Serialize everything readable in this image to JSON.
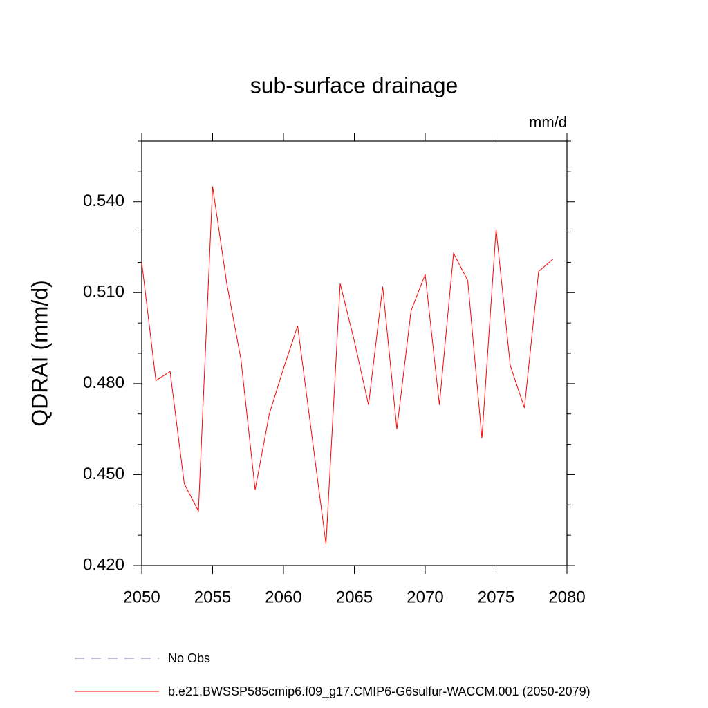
{
  "chart_data": {
    "type": "line",
    "title": "sub-surface drainage",
    "units": "mm/d",
    "ylabel": "QDRAI  (mm/d)",
    "x": [
      2050,
      2051,
      2052,
      2053,
      2054,
      2055,
      2056,
      2057,
      2058,
      2059,
      2060,
      2061,
      2062,
      2063,
      2064,
      2065,
      2066,
      2067,
      2068,
      2069,
      2070,
      2071,
      2072,
      2073,
      2074,
      2075,
      2076,
      2077,
      2078,
      2079
    ],
    "series": [
      {
        "name": "b.e21.BWSSP585cmip6.f09_g17.CMIP6-G6sulfur-WACCM.001 (2050-2079)",
        "color": "#ff0000",
        "values": [
          0.52,
          0.481,
          0.484,
          0.447,
          0.438,
          0.545,
          0.513,
          0.488,
          0.445,
          0.47,
          0.485,
          0.499,
          0.463,
          0.427,
          0.513,
          0.494,
          0.473,
          0.512,
          0.465,
          0.504,
          0.516,
          0.473,
          0.523,
          0.514,
          0.462,
          0.531,
          0.486,
          0.472,
          0.517,
          0.521
        ]
      }
    ],
    "reference": {
      "name": "No Obs",
      "color": "#8070b0",
      "style": "dashed"
    },
    "xlim": [
      2050,
      2080
    ],
    "xticks": [
      2050,
      2055,
      2060,
      2065,
      2070,
      2075,
      2080
    ],
    "ylim": [
      0.42,
      0.56
    ],
    "yticks": [
      {
        "value": 0.42,
        "label": "0.420"
      },
      {
        "value": 0.45,
        "label": "0.450"
      },
      {
        "value": 0.48,
        "label": "0.480"
      },
      {
        "value": 0.51,
        "label": "0.510"
      },
      {
        "value": 0.54,
        "label": "0.540"
      }
    ],
    "yminorticks": [
      0.43,
      0.44,
      0.46,
      0.47,
      0.49,
      0.5,
      0.52,
      0.53,
      0.55,
      0.56
    ]
  }
}
